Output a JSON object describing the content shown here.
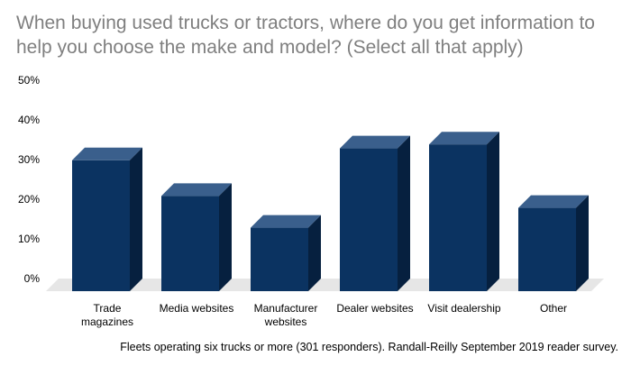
{
  "chart_title": "When buying used trucks or tractors, where do you get information to help you choose the make and model? (Select all that apply)",
  "footnote": "Fleets operating six trucks or more (301 responders). Randall-Reilly September 2019 reader survey.",
  "colors": {
    "bar_front": "#0b3361",
    "bar_top": "#3a5f8c",
    "bar_side": "#06203f",
    "floor": "#e6e6e6"
  },
  "chart_data": {
    "type": "bar",
    "style": "3d-column",
    "title": "When buying used trucks or tractors, where do you get information to help you choose the make and model? (Select all that apply)",
    "categories": [
      "Trade magazines",
      "Media websites",
      "Manufacturer websites",
      "Dealer websites",
      "Visit dealership",
      "Other"
    ],
    "category_lines": [
      [
        "Trade",
        "magazines"
      ],
      [
        "Media websites"
      ],
      [
        "Manufacturer",
        "websites"
      ],
      [
        "Dealer websites"
      ],
      [
        "Visit dealership"
      ],
      [
        "Other"
      ]
    ],
    "values": [
      33,
      24,
      16,
      36,
      37,
      21
    ],
    "yticks": [
      "0%",
      "10%",
      "20%",
      "30%",
      "40%",
      "50%"
    ],
    "ylim": [
      0,
      50
    ],
    "xlabel": "",
    "ylabel": "",
    "grid": false,
    "legend": "none"
  }
}
